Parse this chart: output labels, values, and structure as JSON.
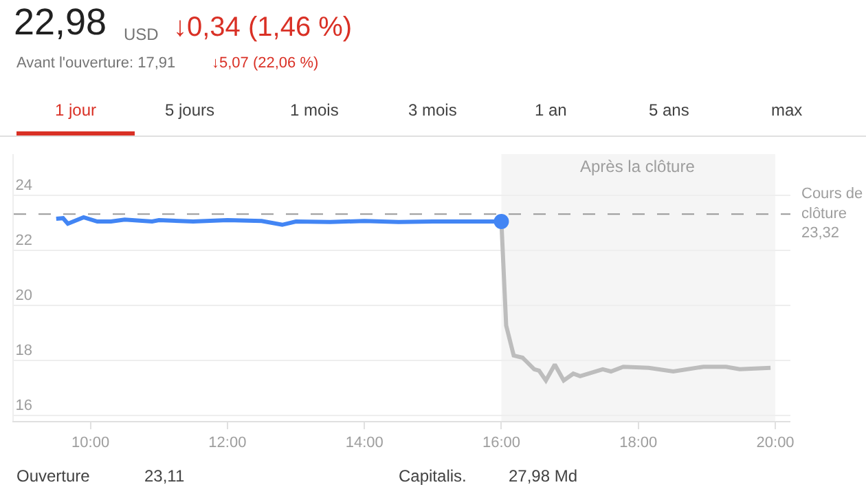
{
  "chart_data": {
    "type": "line",
    "title": "22,98",
    "annotations": [
      "USD",
      "↓0,34 (1,46 %)",
      "Avant l'ouverture: 17,91",
      "↓5,07 (22,06 %)",
      "1 jour",
      "5 jours",
      "1 mois",
      "3 mois",
      "1 an",
      "5 ans",
      "max",
      "Ouverture",
      "23,11",
      "Capitalis.",
      "27,98 Md"
    ],
    "series": [
      {
        "color": "#4285f4",
        "x": [
          9.5,
          9.6,
          9.67,
          9.9,
          10.1,
          10.3,
          10.5,
          10.9,
          11.0,
          11.5,
          12.0,
          12.5,
          12.8,
          13.0,
          13.5,
          14.0,
          14.5,
          15.0,
          15.5,
          15.9,
          16.0
        ],
        "values": [
          23.15,
          23.17,
          22.97,
          23.2,
          23.05,
          23.05,
          23.12,
          23.05,
          23.1,
          23.05,
          23.1,
          23.07,
          22.93,
          23.05,
          23.03,
          23.07,
          23.03,
          23.05,
          23.05,
          23.05,
          23.05
        ]
      },
      {
        "color": "#bdbdbd",
        "x": [
          16.0,
          16.07,
          16.18,
          16.31,
          16.48,
          16.55,
          16.65,
          16.78,
          16.91,
          17.05,
          17.15,
          17.48,
          17.6,
          17.78,
          18.15,
          18.51,
          18.95,
          19.28,
          19.48,
          19.93
        ],
        "values": [
          23.05,
          19.27,
          18.18,
          18.1,
          17.68,
          17.63,
          17.27,
          17.85,
          17.27,
          17.52,
          17.43,
          17.68,
          17.6,
          17.77,
          17.73,
          17.6,
          17.77,
          17.77,
          17.68,
          17.73
        ]
      },
      {
        "type": "scatter",
        "marker": "circle",
        "color": "#4285f4",
        "x": [
          16.0
        ],
        "values": [
          23.05
        ]
      }
    ],
    "xlim": [
      8.88,
      20.22
    ],
    "ylim": [
      15.8,
      25.5
    ],
    "xticks": [
      {
        "value": 10,
        "label": "10:00"
      },
      {
        "value": 12,
        "label": "12:00"
      },
      {
        "value": 14,
        "label": "14:00"
      },
      {
        "value": 16,
        "label": "16:00"
      },
      {
        "value": 18,
        "label": "18:00"
      },
      {
        "value": 20,
        "label": "20:00"
      }
    ],
    "yticks": [
      16,
      18,
      20,
      22,
      24
    ],
    "grid": "y",
    "marker": "none",
    "line_style": "solid",
    "ref_lines": [
      {
        "axis": "y",
        "value": 23.32,
        "label": "Cours de\nclôture\n23,32",
        "color": "#999999",
        "line_style": "dashed"
      }
    ],
    "bands": [
      {
        "axis": "x",
        "from": 16,
        "to": 20,
        "label": "Après la clôture",
        "color": "#f5f5f5"
      }
    ]
  }
}
